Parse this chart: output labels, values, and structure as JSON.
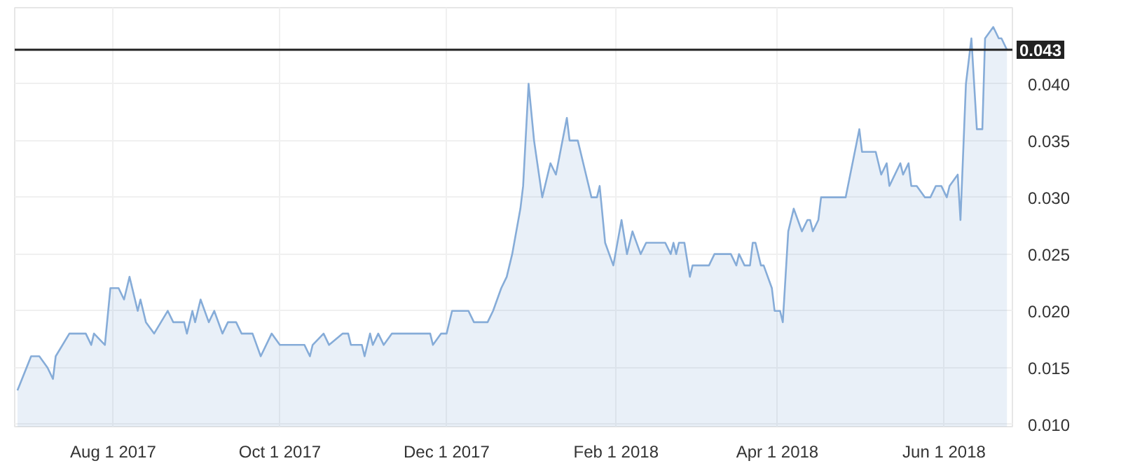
{
  "chart_data": {
    "type": "area",
    "x": [
      "2017-06-27",
      "2017-07-02",
      "2017-07-05",
      "2017-07-08",
      "2017-07-10",
      "2017-07-11",
      "2017-07-16",
      "2017-07-22",
      "2017-07-24",
      "2017-07-25",
      "2017-07-29",
      "2017-07-31",
      "2017-08-03",
      "2017-08-05",
      "2017-08-07",
      "2017-08-10",
      "2017-08-11",
      "2017-08-13",
      "2017-08-16",
      "2017-08-21",
      "2017-08-23",
      "2017-08-27",
      "2017-08-28",
      "2017-08-30",
      "2017-08-31",
      "2017-09-02",
      "2017-09-05",
      "2017-09-07",
      "2017-09-10",
      "2017-09-12",
      "2017-09-15",
      "2017-09-17",
      "2017-09-21",
      "2017-09-24",
      "2017-09-28",
      "2017-10-01",
      "2017-10-10",
      "2017-10-12",
      "2017-10-13",
      "2017-10-17",
      "2017-10-19",
      "2017-10-24",
      "2017-10-26",
      "2017-10-27",
      "2017-10-31",
      "2017-11-01",
      "2017-11-03",
      "2017-11-04",
      "2017-11-06",
      "2017-11-08",
      "2017-11-11",
      "2017-11-25",
      "2017-11-26",
      "2017-11-29",
      "2017-12-01",
      "2017-12-03",
      "2017-12-09",
      "2017-12-11",
      "2017-12-16",
      "2017-12-18",
      "2017-12-21",
      "2017-12-23",
      "2017-12-25",
      "2017-12-28",
      "2017-12-29",
      "2017-12-31",
      "2018-01-02",
      "2018-01-05",
      "2018-01-08",
      "2018-01-10",
      "2018-01-14",
      "2018-01-15",
      "2018-01-18",
      "2018-01-21",
      "2018-01-23",
      "2018-01-25",
      "2018-01-26",
      "2018-01-28",
      "2018-01-31",
      "2018-02-03",
      "2018-02-05",
      "2018-02-07",
      "2018-02-10",
      "2018-02-12",
      "2018-02-19",
      "2018-02-21",
      "2018-02-22",
      "2018-02-23",
      "2018-02-24",
      "2018-02-26",
      "2018-02-28",
      "2018-03-01",
      "2018-03-07",
      "2018-03-09",
      "2018-03-15",
      "2018-03-17",
      "2018-03-18",
      "2018-03-20",
      "2018-03-22",
      "2018-03-23",
      "2018-03-24",
      "2018-03-26",
      "2018-03-27",
      "2018-03-30",
      "2018-03-31",
      "2018-04-02",
      "2018-04-03",
      "2018-04-05",
      "2018-04-07",
      "2018-04-10",
      "2018-04-12",
      "2018-04-13",
      "2018-04-14",
      "2018-04-16",
      "2018-04-17",
      "2018-04-26",
      "2018-05-01",
      "2018-05-02",
      "2018-05-07",
      "2018-05-09",
      "2018-05-11",
      "2018-05-12",
      "2018-05-16",
      "2018-05-17",
      "2018-05-19",
      "2018-05-20",
      "2018-05-22",
      "2018-05-25",
      "2018-05-27",
      "2018-05-29",
      "2018-05-31",
      "2018-06-02",
      "2018-06-03",
      "2018-06-06",
      "2018-06-07",
      "2018-06-09",
      "2018-06-11",
      "2018-06-13",
      "2018-06-15",
      "2018-06-16",
      "2018-06-19",
      "2018-06-21",
      "2018-06-22",
      "2018-06-24"
    ],
    "series": [
      {
        "color": "#86acd8",
        "values": [
          0.013,
          0.016,
          0.016,
          0.015,
          0.014,
          0.016,
          0.018,
          0.018,
          0.017,
          0.018,
          0.017,
          0.022,
          0.022,
          0.021,
          0.023,
          0.02,
          0.021,
          0.019,
          0.018,
          0.02,
          0.019,
          0.019,
          0.018,
          0.02,
          0.019,
          0.021,
          0.019,
          0.02,
          0.018,
          0.019,
          0.019,
          0.018,
          0.018,
          0.016,
          0.018,
          0.017,
          0.017,
          0.016,
          0.017,
          0.018,
          0.017,
          0.018,
          0.018,
          0.017,
          0.017,
          0.016,
          0.018,
          0.017,
          0.018,
          0.017,
          0.018,
          0.018,
          0.017,
          0.018,
          0.018,
          0.02,
          0.02,
          0.019,
          0.019,
          0.02,
          0.022,
          0.023,
          0.025,
          0.029,
          0.031,
          0.04,
          0.035,
          0.03,
          0.033,
          0.032,
          0.037,
          0.035,
          0.035,
          0.032,
          0.03,
          0.03,
          0.031,
          0.026,
          0.024,
          0.028,
          0.025,
          0.027,
          0.025,
          0.026,
          0.026,
          0.025,
          0.026,
          0.025,
          0.026,
          0.026,
          0.023,
          0.024,
          0.024,
          0.025,
          0.025,
          0.024,
          0.025,
          0.024,
          0.024,
          0.026,
          0.026,
          0.024,
          0.024,
          0.022,
          0.02,
          0.02,
          0.019,
          0.027,
          0.029,
          0.027,
          0.028,
          0.028,
          0.027,
          0.028,
          0.03,
          0.03,
          0.036,
          0.034,
          0.034,
          0.032,
          0.033,
          0.031,
          0.033,
          0.032,
          0.033,
          0.031,
          0.031,
          0.03,
          0.03,
          0.031,
          0.031,
          0.03,
          0.031,
          0.032,
          0.028,
          0.04,
          0.044,
          0.036,
          0.036,
          0.044,
          0.045,
          0.044,
          0.044,
          0.043
        ]
      }
    ],
    "xlim": [
      "2017-06-26",
      "2018-06-26"
    ],
    "xticks": [
      {
        "value": "2017-08-01",
        "label": "Aug 1 2017"
      },
      {
        "value": "2017-10-01",
        "label": "Oct 1 2017"
      },
      {
        "value": "2017-12-01",
        "label": "Dec 1 2017"
      },
      {
        "value": "2018-02-01",
        "label": "Feb 1 2018"
      },
      {
        "value": "2018-04-01",
        "label": "Apr 1 2018"
      },
      {
        "value": "2018-06-01",
        "label": "Jun 1 2018"
      }
    ],
    "ylim": [
      0.0098,
      0.0467
    ],
    "yticks": [
      {
        "value": 0.01,
        "label": "0.010"
      },
      {
        "value": 0.015,
        "label": "0.015"
      },
      {
        "value": 0.02,
        "label": "0.020"
      },
      {
        "value": 0.025,
        "label": "0.025"
      },
      {
        "value": 0.03,
        "label": "0.030"
      },
      {
        "value": 0.035,
        "label": "0.035"
      },
      {
        "value": 0.04,
        "label": "0.040"
      }
    ],
    "ref_lines": [
      {
        "axis": "y",
        "value": 0.043,
        "label": "0.043",
        "color": "#222222"
      }
    ],
    "grid": true
  }
}
